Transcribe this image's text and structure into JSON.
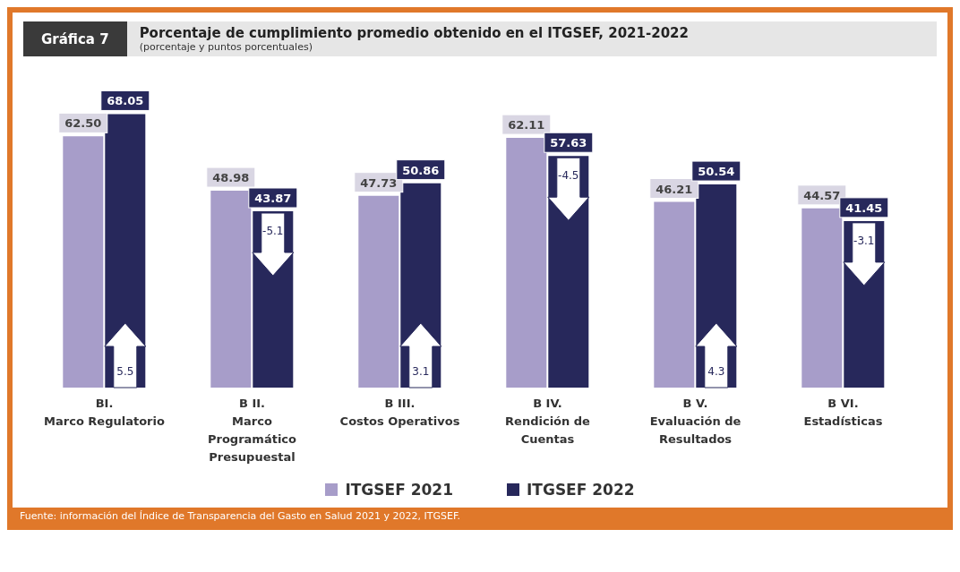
{
  "chart_data": {
    "type": "bar",
    "title": "Porcentaje de cumplimiento promedio obtenido en el ITGSEF, 2021-2022",
    "subtitle": "(porcentaje y puntos porcentuales)",
    "categories": [
      "BI.\nMarco Regulatorio",
      "B II.\nMarco\nProgramático\nPresupuestal",
      "B III.\nCostos Operativos",
      "B IV.\nRendición de\nCuentas",
      "B V.\nEvaluación de\nResultados",
      "B VI.\nEstadísticas"
    ],
    "series": [
      {
        "name": "ITGSEF 2021",
        "color": "#a79dc9",
        "values": [
          62.5,
          48.98,
          47.73,
          62.11,
          46.21,
          44.57
        ],
        "value_labels": [
          "62.50",
          "48.98",
          "47.73",
          "62.11",
          "46.21",
          "44.57"
        ]
      },
      {
        "name": "ITGSEF 2022",
        "color": "#27285b",
        "values": [
          68.05,
          43.87,
          50.86,
          57.63,
          50.54,
          41.45
        ],
        "value_labels": [
          "68.05",
          "43.87",
          "50.86",
          "57.63",
          "50.54",
          "41.45"
        ]
      }
    ],
    "legend": "bottom",
    "grid": false,
    "annotations": [
      "Gráfica 7",
      "Fuente: información del Índice de Transparencia del Gasto en Salud 2021 y 2022, ITGSEF.",
      {
        "text": "5.5",
        "x": "BI.\nMarco Regulatorio",
        "y": 0
      },
      {
        "text": "-5.1",
        "x": "B II.\nMarco\nProgramático\nPresupuestal",
        "y": 43.87
      },
      {
        "text": "3.1",
        "x": "B III.\nCostos Operativos",
        "y": 0
      },
      {
        "text": "-4.5",
        "x": "B IV.\nRendición de\nCuentas",
        "y": 57.63
      },
      {
        "text": "4.3",
        "x": "B V.\nEvaluación de\nResultados",
        "y": 0
      },
      {
        "text": "-3.1",
        "x": "B VI.\nEstadísticas",
        "y": 41.45
      }
    ]
  }
}
